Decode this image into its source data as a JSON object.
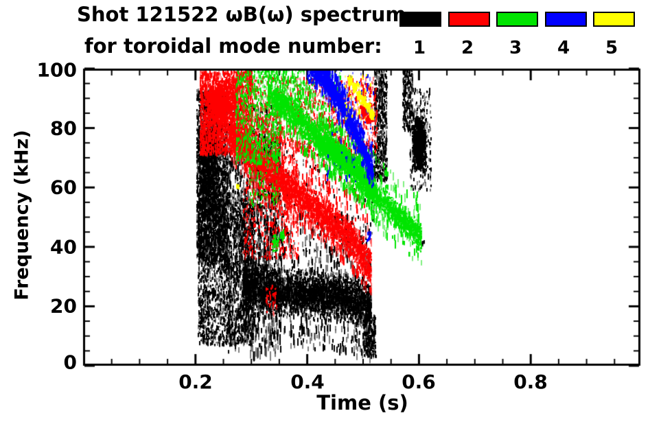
{
  "header": {
    "title_line1": "Shot 121522 ωB(ω) spectrum",
    "title_line2": "for toroidal mode number:"
  },
  "legend": {
    "entries": [
      {
        "label": "1",
        "color": "#000000"
      },
      {
        "label": "2",
        "color": "#ff0000"
      },
      {
        "label": "3",
        "color": "#00e400"
      },
      {
        "label": "4",
        "color": "#0000ff"
      },
      {
        "label": "5",
        "color": "#ffff00"
      }
    ]
  },
  "axes": {
    "xlabel": "Time (s)",
    "ylabel": "Frequency (kHz)",
    "xtick_labels": [
      "0.2",
      "0.4",
      "0.6",
      "0.8"
    ],
    "ytick_labels": [
      "0",
      "20",
      "40",
      "60",
      "80",
      "100"
    ]
  },
  "chart_data": {
    "type": "scatter",
    "title": "Shot 121522 ωB(ω) spectrum",
    "subtitle": "for toroidal mode number:",
    "xlabel": "Time (s)",
    "ylabel": "Frequency (kHz)",
    "xlim": [
      0.0,
      1.0
    ],
    "ylim": [
      0,
      100
    ],
    "xticks_major": [
      0.2,
      0.4,
      0.6,
      0.8
    ],
    "x_minor_step": 0.05,
    "yticks_major": [
      0,
      20,
      40,
      60,
      80,
      100
    ],
    "y_minor_step": 5,
    "grid": false,
    "legend_position": "top-right",
    "modes": [
      {
        "n": 1,
        "color": "#000000"
      },
      {
        "n": 2,
        "color": "#ff0000"
      },
      {
        "n": 3,
        "color": "#00e400"
      },
      {
        "n": 4,
        "color": "#0000ff"
      },
      {
        "n": 5,
        "color": "#ffff00"
      }
    ],
    "series": [
      {
        "name": "1",
        "color": "#000000",
        "description": "broadband burst t=0.20-0.31s f=7-93kHz; low-frequency band f≈20-30kHz from t=0.28-0.52s with spikes; high-f streaks t=0.52-0.59s f=62-100kHz; dense blob t≈0.60s f=65-84kHz"
      },
      {
        "name": "2",
        "color": "#ff0000",
        "description": "cluster t=0.21-0.30s f=71-99kHz; chirping band descending from (0.26s,79kHz) to (0.515s,32kHz); scattered activity f=70-97kHz until t≈0.52s"
      },
      {
        "name": "3",
        "color": "#00e400",
        "description": "streaks t=0.27-0.35s f=68-100kHz; band descending from (0.33s,92kHz) to (0.60s,43kHz); specks near (0.345s,42kHz)"
      },
      {
        "name": "4",
        "color": "#0000ff",
        "description": "band descending from (0.41s,100kHz) to (0.52s,65kHz)"
      },
      {
        "name": "5",
        "color": "#ffff00",
        "description": "spot chain descending t=0.475-0.52s f=84-97kHz; isolated speck near (0.276s,60kHz)"
      }
    ],
    "features": [
      {
        "m": 1,
        "k": "cloud",
        "t": [
          0.202,
          0.258
        ],
        "f": [
          35,
          93
        ],
        "n": 2600,
        "c": 26
      },
      {
        "m": 1,
        "k": "blob",
        "cen": [
          0.225,
          66
        ],
        "rt": 0.02,
        "rf": 16,
        "n": 800
      },
      {
        "m": 1,
        "k": "cloud",
        "t": [
          0.205,
          0.305
        ],
        "f": [
          7,
          56
        ],
        "n": 2300,
        "c": 40
      },
      {
        "m": 1,
        "k": "cloud",
        "t": [
          0.255,
          0.35
        ],
        "f": [
          28,
          88
        ],
        "n": 750,
        "c": 22
      },
      {
        "m": 1,
        "k": "spikes",
        "t": [
          0.258,
          0.355
        ],
        "f": [
          3,
          76
        ],
        "n": 620,
        "c": 11
      },
      {
        "m": 1,
        "k": "path",
        "p": [
          [
            0.285,
            27
          ],
          [
            0.34,
            25
          ],
          [
            0.4,
            24
          ],
          [
            0.46,
            23
          ],
          [
            0.515,
            20
          ]
        ],
        "hw": 7.5,
        "n": 5200,
        "up": 20,
        "dn": 11,
        "c": 120
      },
      {
        "m": 1,
        "k": "cloud",
        "t": [
          0.5,
          0.523
        ],
        "f": [
          3,
          17
        ],
        "n": 280,
        "c": 9
      },
      {
        "m": 1,
        "k": "cloud",
        "t": [
          0.52,
          0.543
        ],
        "f": [
          62,
          100
        ],
        "n": 600,
        "c": 7
      },
      {
        "m": 1,
        "k": "cloud",
        "t": [
          0.571,
          0.589
        ],
        "f": [
          79,
          100
        ],
        "n": 250,
        "c": 6
      },
      {
        "m": 1,
        "k": "blob",
        "cen": [
          0.601,
          74.5
        ],
        "rt": 0.0135,
        "rf": 9.5,
        "n": 1250
      },
      {
        "m": 1,
        "k": "cloud",
        "t": [
          0.583,
          0.622
        ],
        "f": [
          59,
          93
        ],
        "n": 220,
        "c": 14
      },
      {
        "m": 1,
        "k": "cloud",
        "t": [
          0.3,
          0.52
        ],
        "f": [
          38,
          75
        ],
        "n": 300,
        "c": 34
      },
      {
        "m": 1,
        "k": "blob",
        "cen": [
          0.607,
          41.5
        ],
        "rt": 0.003,
        "rf": 1.5,
        "n": 10
      },
      {
        "m": 2,
        "k": "cloud",
        "t": [
          0.208,
          0.302
        ],
        "f": [
          71,
          99
        ],
        "n": 2600,
        "c": 34
      },
      {
        "m": 2,
        "k": "blob",
        "cen": [
          0.243,
          88
        ],
        "rt": 0.024,
        "rf": 7,
        "n": 900
      },
      {
        "m": 2,
        "k": "path",
        "p": [
          [
            0.262,
            79
          ],
          [
            0.32,
            67
          ],
          [
            0.38,
            58
          ],
          [
            0.44,
            49
          ],
          [
            0.482,
            42
          ],
          [
            0.515,
            32
          ]
        ],
        "hw": 6,
        "n": 4200,
        "up": 13,
        "dn": 4,
        "c": 110
      },
      {
        "m": 2,
        "k": "cloud",
        "t": [
          0.3,
          0.525
        ],
        "f": [
          70,
          97
        ],
        "n": 1350,
        "c": 70
      },
      {
        "m": 2,
        "k": "cloud",
        "t": [
          0.285,
          0.385
        ],
        "f": [
          36,
          70
        ],
        "n": 600,
        "c": 26
      },
      {
        "m": 2,
        "k": "cloud",
        "t": [
          0.325,
          0.345
        ],
        "f": [
          17,
          27
        ],
        "n": 45,
        "c": 4
      },
      {
        "m": 2,
        "k": "blob",
        "cen": [
          0.503,
          85.5
        ],
        "rt": 0.007,
        "rf": 2.6,
        "n": 140
      },
      {
        "m": 2,
        "k": "blob",
        "cen": [
          0.513,
          83.5
        ],
        "rt": 0.006,
        "rf": 2.2,
        "n": 100
      },
      {
        "m": 3,
        "k": "cloud",
        "t": [
          0.272,
          0.352
        ],
        "f": [
          68,
          100
        ],
        "n": 700,
        "c": 13
      },
      {
        "m": 3,
        "k": "cloud",
        "t": [
          0.295,
          0.35
        ],
        "f": [
          54,
          76
        ],
        "n": 150,
        "c": 8
      },
      {
        "m": 3,
        "k": "path",
        "p": [
          [
            0.33,
            92
          ],
          [
            0.38,
            84
          ],
          [
            0.43,
            75
          ],
          [
            0.47,
            69
          ],
          [
            0.5,
            63
          ],
          [
            0.53,
            56
          ],
          [
            0.565,
            50
          ],
          [
            0.605,
            43
          ]
        ],
        "hw": 4.5,
        "n": 3800,
        "up": 9,
        "dn": 6,
        "c": 115
      },
      {
        "m": 3,
        "k": "path",
        "p": [
          [
            0.42,
            75.5
          ],
          [
            0.47,
            69
          ],
          [
            0.52,
            58
          ]
        ],
        "hw": 5,
        "n": 1400,
        "up": 5,
        "dn": 4,
        "c": 45
      },
      {
        "m": 3,
        "k": "cloud",
        "t": [
          0.355,
          0.46
        ],
        "f": [
          86,
          100
        ],
        "n": 220,
        "c": 40
      },
      {
        "m": 3,
        "k": "blob",
        "cen": [
          0.343,
          41.5
        ],
        "rt": 0.008,
        "rf": 3,
        "n": 55
      },
      {
        "m": 3,
        "k": "blob",
        "cen": [
          0.356,
          44
        ],
        "rt": 0.004,
        "rf": 2,
        "n": 22
      },
      {
        "m": 4,
        "k": "path",
        "p": [
          [
            0.413,
            99.5
          ],
          [
            0.436,
            95
          ],
          [
            0.458,
            89
          ],
          [
            0.478,
            82
          ],
          [
            0.497,
            74
          ],
          [
            0.509,
            69
          ],
          [
            0.518,
            65
          ]
        ],
        "hw": 3,
        "n": 2400,
        "up": 4,
        "dn": 3,
        "c": 85
      },
      {
        "m": 4,
        "k": "cloud",
        "t": [
          0.4,
          0.428
        ],
        "f": [
          95,
          100
        ],
        "n": 100,
        "c": 12
      },
      {
        "m": 4,
        "k": "cloud",
        "t": [
          0.435,
          0.52
        ],
        "f": [
          62,
          100
        ],
        "n": 120,
        "c": 45
      },
      {
        "m": 4,
        "k": "blob",
        "cen": [
          0.511,
          43.5
        ],
        "rt": 0.004,
        "rf": 2.2,
        "n": 18
      },
      {
        "m": 5,
        "k": "blob",
        "cen": [
          0.477,
          96
        ],
        "rt": 0.005,
        "rf": 1.8,
        "n": 70
      },
      {
        "m": 5,
        "k": "blob",
        "cen": [
          0.485,
          93.5
        ],
        "rt": 0.005,
        "rf": 1.7,
        "n": 70
      },
      {
        "m": 5,
        "k": "blob",
        "cen": [
          0.493,
          91
        ],
        "rt": 0.005,
        "rf": 1.7,
        "n": 70
      },
      {
        "m": 5,
        "k": "blob",
        "cen": [
          0.501,
          89
        ],
        "rt": 0.005,
        "rf": 1.7,
        "n": 70
      },
      {
        "m": 5,
        "k": "blob",
        "cen": [
          0.509,
          87
        ],
        "rt": 0.005,
        "rf": 1.6,
        "n": 60
      },
      {
        "m": 5,
        "k": "blob",
        "cen": [
          0.516,
          84.5
        ],
        "rt": 0.005,
        "rf": 1.6,
        "n": 60
      },
      {
        "m": 5,
        "k": "cloud",
        "t": [
          0.468,
          0.52
        ],
        "f": [
          83,
          98
        ],
        "n": 60,
        "c": 18
      },
      {
        "m": 5,
        "k": "blob",
        "cen": [
          0.276,
          60
        ],
        "rt": 0.003,
        "rf": 1.2,
        "n": 8
      }
    ]
  }
}
